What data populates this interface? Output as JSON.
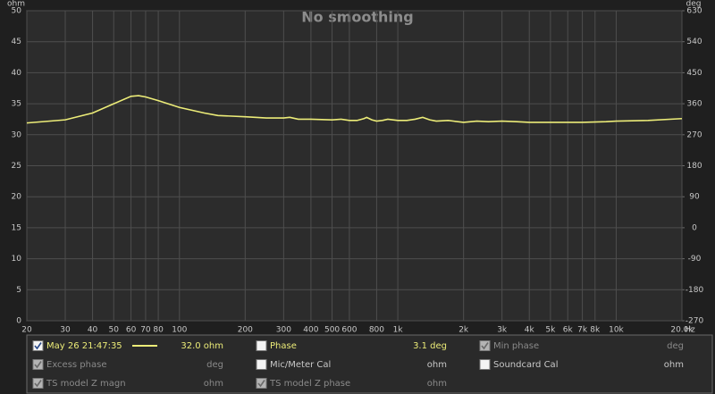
{
  "chart_data": {
    "type": "line",
    "title": "No smoothing",
    "ylabel": "ohm",
    "y2label": "deg",
    "xlabel": "Hz",
    "log_x": true,
    "grid": true,
    "x": [
      20,
      30,
      40,
      50,
      60,
      65,
      70,
      80,
      100,
      130,
      150,
      200,
      250,
      300,
      320,
      350,
      400,
      500,
      550,
      600,
      650,
      700,
      720,
      760,
      800,
      850,
      900,
      1000,
      1100,
      1200,
      1300,
      1400,
      1500,
      1700,
      2000,
      2300,
      2600,
      3000,
      3500,
      4000,
      5000,
      7000,
      9000,
      10000,
      14000,
      20000
    ],
    "series": [
      {
        "name": "May 26 21:47:35",
        "color": "#ecec78",
        "values": [
          31.9,
          32.4,
          33.5,
          35.0,
          36.2,
          36.3,
          36.1,
          35.5,
          34.4,
          33.5,
          33.1,
          32.9,
          32.7,
          32.7,
          32.8,
          32.5,
          32.5,
          32.4,
          32.5,
          32.3,
          32.3,
          32.6,
          32.8,
          32.4,
          32.2,
          32.3,
          32.5,
          32.3,
          32.3,
          32.5,
          32.8,
          32.4,
          32.2,
          32.3,
          32.0,
          32.2,
          32.1,
          32.2,
          32.1,
          32.0,
          32.0,
          32.0,
          32.1,
          32.2,
          32.3,
          32.6
        ]
      }
    ],
    "xlim": [
      20,
      20000
    ],
    "xticks": [
      20,
      30,
      40,
      50,
      60,
      70,
      80,
      100,
      200,
      300,
      400,
      500,
      600,
      800,
      {
        "value": 1000,
        "label": "1k"
      },
      {
        "value": 2000,
        "label": "2k"
      },
      {
        "value": 3000,
        "label": "3k"
      },
      {
        "value": 4000,
        "label": "4k"
      },
      {
        "value": 5000,
        "label": "5k"
      },
      {
        "value": 6000,
        "label": "6k"
      },
      {
        "value": 7000,
        "label": "7k"
      },
      {
        "value": 8000,
        "label": "8k"
      },
      {
        "value": 10000,
        "label": "10k"
      },
      {
        "value": 20000,
        "label": "20.0k"
      }
    ],
    "ylim": [
      0,
      50
    ],
    "yticks": [
      0,
      5,
      10,
      15,
      20,
      25,
      30,
      35,
      40,
      45,
      50
    ],
    "y2lim": [
      -270,
      630
    ],
    "y2ticks": [
      -270,
      -180,
      -90,
      0,
      90,
      180,
      270,
      360,
      450,
      540,
      630
    ]
  },
  "legend_panel": [
    [
      {
        "readout": "32.0 ohm",
        "checked": true,
        "enabled": true,
        "color": "#ecec78"
      },
      {
        "label": "Phase",
        "readout": "3.1 deg",
        "checked": false,
        "enabled": true,
        "color": "#ecec78"
      },
      {
        "label": "Min phase",
        "readout": "deg",
        "checked": true,
        "enabled": false,
        "color": "#8a8a8a"
      }
    ],
    [
      {
        "label": "Excess phase",
        "readout": "deg",
        "checked": true,
        "enabled": false,
        "color": "#8a8a8a"
      },
      {
        "label": "Mic/Meter Cal",
        "readout": "ohm",
        "checked": false,
        "enabled": true,
        "color": "#c8c8c8"
      },
      {
        "label": "Soundcard Cal",
        "readout": "ohm",
        "checked": false,
        "enabled": true,
        "color": "#c8c8c8"
      }
    ],
    [
      {
        "label": "TS model Z magn",
        "readout": "ohm",
        "checked": true,
        "enabled": false,
        "color": "#8a8a8a"
      },
      {
        "label": "TS model Z phase",
        "readout": "ohm",
        "checked": true,
        "enabled": false,
        "color": "#8a8a8a"
      }
    ]
  ]
}
